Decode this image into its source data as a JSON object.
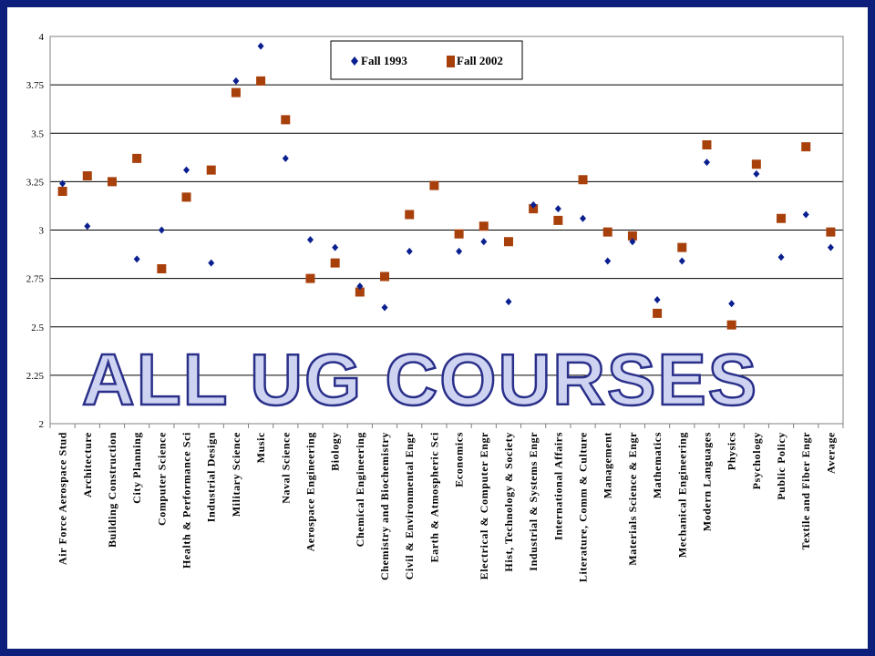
{
  "colors": {
    "frame": "#0d1f7a",
    "fall1993": "#0a1f8f",
    "fall2002": "#a8400c"
  },
  "watermark": "ALL UG COURSES",
  "chart_data": {
    "type": "scatter",
    "ylim": [
      2,
      4
    ],
    "yticks": [
      "2",
      "2.25",
      "2.5",
      "2.75",
      "3",
      "3.25",
      "3.5",
      "3.75",
      "4"
    ],
    "ytick_values": [
      2,
      2.25,
      2.5,
      2.75,
      3,
      3.25,
      3.5,
      3.75,
      4
    ],
    "grid": true,
    "legend": "top-center",
    "categories": [
      "Air Force Aerospace Stud",
      "Architecture",
      "Building Construction",
      "City Planning",
      "Computer Science",
      "Health & Performance Sci",
      "Industrial Design",
      "Military Science",
      "Music",
      "Naval Science",
      "Aerospace Engineering",
      "Biology",
      "Chemical Engineering",
      "Chemistry and Biochemistry",
      "Civil & Environmental Engr",
      "Earth & Atmospheric Sci",
      "Economics",
      "Electrical & Computer Engr",
      "Hist, Technology & Society",
      "Industrial & Systems Engr",
      "International Affairs",
      "Literature, Comm & Culture",
      "Management",
      "Materials Science & Engr",
      "Mathematics",
      "Mechanical Engineering",
      "Modern Languages",
      "Physics",
      "Psychology",
      "Public Policy",
      "Textile and Fiber Engr",
      "Average"
    ],
    "series": [
      {
        "name": "Fall 1993",
        "marker": "diamond",
        "values": [
          3.24,
          3.02,
          null,
          2.85,
          3.0,
          3.31,
          2.83,
          3.77,
          3.95,
          3.37,
          2.95,
          2.91,
          2.71,
          2.6,
          2.89,
          null,
          2.89,
          2.94,
          2.63,
          3.13,
          3.11,
          3.06,
          2.84,
          2.94,
          2.64,
          2.84,
          3.35,
          2.62,
          3.29,
          2.86,
          3.08,
          2.91
        ]
      },
      {
        "name": "Fall 2002",
        "marker": "square",
        "values": [
          3.2,
          3.28,
          3.25,
          3.37,
          2.8,
          3.17,
          3.31,
          3.71,
          3.77,
          3.57,
          2.75,
          2.83,
          2.68,
          2.76,
          3.08,
          3.23,
          2.98,
          3.02,
          2.94,
          3.11,
          3.05,
          3.26,
          2.99,
          2.97,
          2.57,
          2.91,
          3.44,
          2.51,
          3.34,
          3.06,
          3.43,
          2.99
        ]
      }
    ]
  }
}
